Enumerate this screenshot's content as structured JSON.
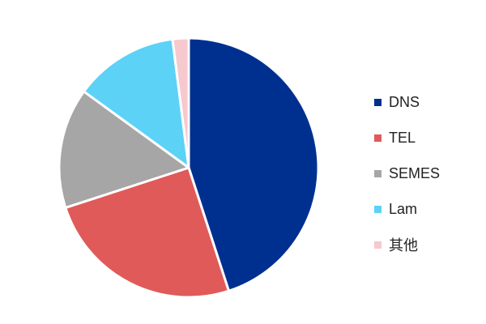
{
  "chart_data": {
    "type": "pie",
    "categories": [
      "DNS",
      "TEL",
      "SEMES",
      "Lam",
      "其他"
    ],
    "values": [
      45,
      25,
      15,
      13,
      2
    ],
    "colors": [
      "#00308F",
      "#E05A5A",
      "#A6A6A6",
      "#5CD2F7",
      "#F6C9CF"
    ],
    "start_angle_deg": 0,
    "direction": "clockwise",
    "legend_position": "right",
    "title": "",
    "slice_border_color": "#ffffff"
  },
  "legend": {
    "items": [
      {
        "label": "DNS",
        "color": "#00308F"
      },
      {
        "label": "TEL",
        "color": "#E05A5A"
      },
      {
        "label": "SEMES",
        "color": "#A6A6A6"
      },
      {
        "label": "Lam",
        "color": "#5CD2F7"
      },
      {
        "label": "其他",
        "color": "#F6C9CF"
      }
    ]
  }
}
